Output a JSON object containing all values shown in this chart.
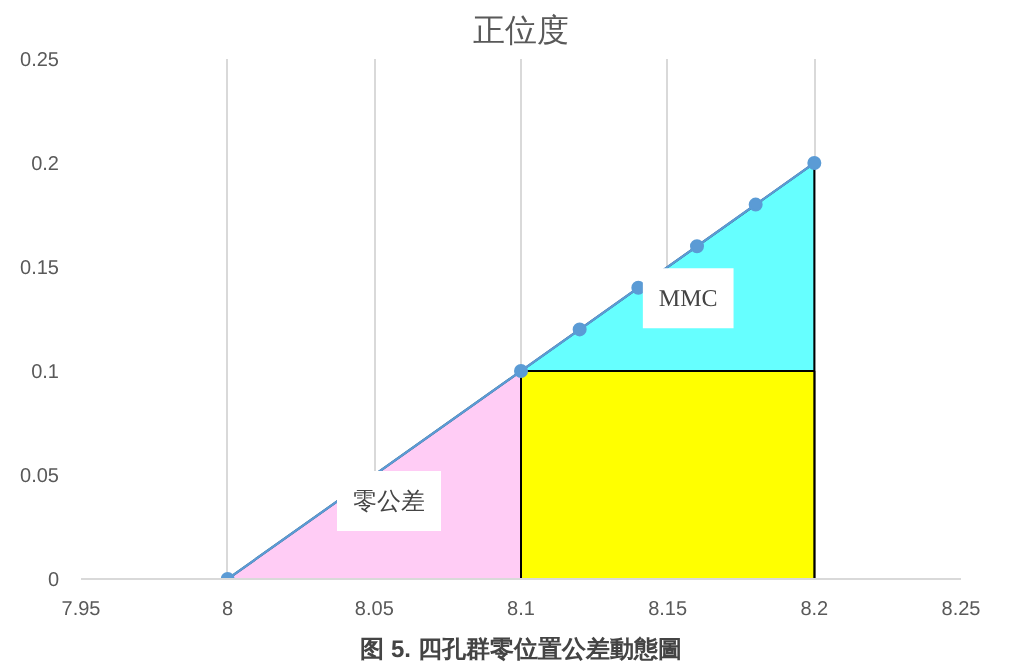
{
  "chart_data": {
    "type": "line",
    "title": "正位度",
    "series": [
      {
        "type": "area",
        "color": "#ffccf5",
        "x": [
          8,
          8.1
        ],
        "values": [
          0,
          0.1
        ]
      },
      {
        "type": "area",
        "color": "#66ffff",
        "x": [
          8.1,
          8.2
        ],
        "values": [
          0.1,
          0.2
        ]
      },
      {
        "type": "area",
        "color": "#ffff00",
        "x": [
          8.1,
          8.2
        ],
        "values": [
          0.1,
          0.1
        ]
      },
      {
        "marker": "circle",
        "color": "#5b9bd5",
        "x": [
          8,
          8.1,
          8.12,
          8.14,
          8.16,
          8.18,
          8.2
        ],
        "values": [
          0,
          0.1,
          0.12,
          0.14,
          0.16,
          0.18,
          0.2
        ]
      }
    ],
    "xlim": [
      7.95,
      8.25
    ],
    "xticks": [
      7.95,
      8,
      8.05,
      8.1,
      8.15,
      8.2,
      8.25
    ],
    "ylim": [
      0,
      0.25
    ],
    "yticks": [
      0,
      0.05,
      0.1,
      0.15,
      0.2,
      0.25
    ],
    "grid": "x",
    "annotations": [
      "MMC",
      "零公差",
      "图 5. 四孔群零位置公差動態圖"
    ]
  }
}
